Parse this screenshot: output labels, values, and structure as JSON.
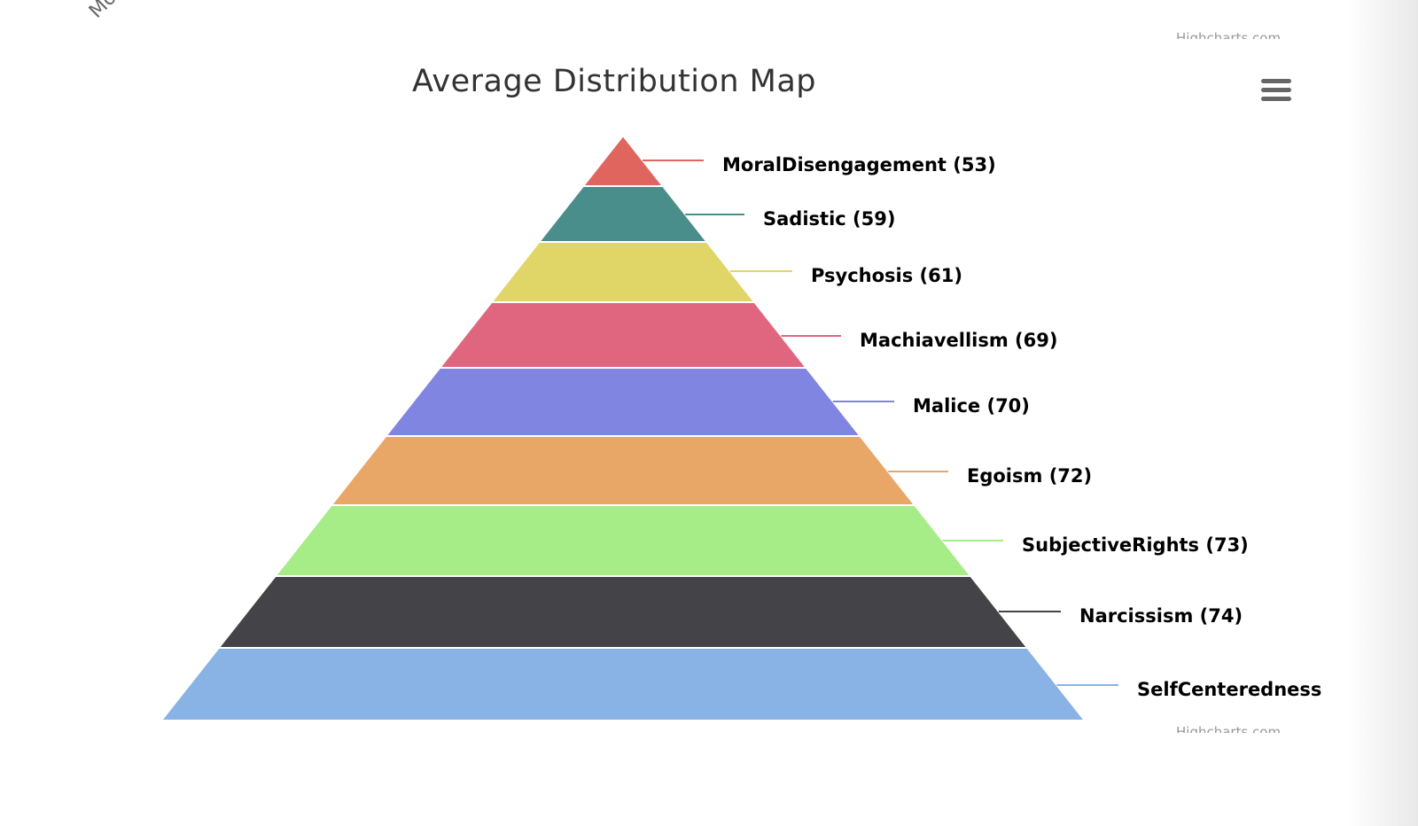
{
  "corner_text": "Mo",
  "credits": "Highcharts.com",
  "menu_icon": "hamburger-menu-icon",
  "chart_data": {
    "type": "pyramid",
    "title": "Average Distribution Map",
    "series": [
      {
        "name": "MoralDisengagement",
        "value": 53,
        "label": "MoralDisengagement (53)",
        "color": "#e1655f"
      },
      {
        "name": "Sadistic",
        "value": 59,
        "label": "Sadistic (59)",
        "color": "#4a8e8c"
      },
      {
        "name": "Psychosis",
        "value": 61,
        "label": "Psychosis (61)",
        "color": "#e0d567"
      },
      {
        "name": "Machiavellism",
        "value": 69,
        "label": "Machiavellism (69)",
        "color": "#e0667f"
      },
      {
        "name": "Malice",
        "value": 70,
        "label": "Malice (70)",
        "color": "#8085e1"
      },
      {
        "name": "Egoism",
        "value": 72,
        "label": "Egoism (72)",
        "color": "#e8a766"
      },
      {
        "name": "SubjectiveRights",
        "value": 73,
        "label": "SubjectiveRights (73)",
        "color": "#a6ec87"
      },
      {
        "name": "Narcissism",
        "value": 74,
        "label": "Narcissism (74)",
        "color": "#444448"
      },
      {
        "name": "SelfCenteredness",
        "value": null,
        "label": "SelfCenteredness",
        "color": "#89b2e5"
      }
    ]
  }
}
